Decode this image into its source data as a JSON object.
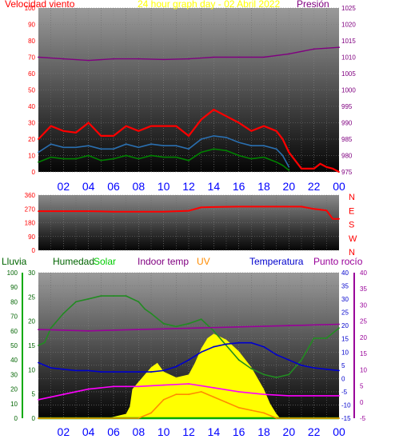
{
  "header": {
    "wind_label": "Velocidad viento",
    "title": "24 hour graph day - 02 Abril 2022",
    "pressure_label": "Presión"
  },
  "legend2": {
    "rain": "Lluvia",
    "humidity": "Humedad",
    "solar": "Solar",
    "indoor": "Indoor temp",
    "uv": "UV",
    "temperature": "Temperatura",
    "dewpoint": "Punto rocío"
  },
  "colors": {
    "wind_gust": "#ff0000",
    "wind_avg": "#2a6fb0",
    "wind_low": "#008000",
    "pressure": "#800080",
    "direction": "#ff0000",
    "humidity": "#228b22",
    "solar": "#ffff00",
    "temperature": "#0000cd",
    "dewpoint": "#990099",
    "indoor": "#ff00ff",
    "uv": "#ff8c00",
    "rain_axis": "#00aa00",
    "x_axis_text": "#0000ff"
  },
  "chart_data": [
    {
      "id": "wind_pressure",
      "type": "line",
      "title": "24 hour graph day - 02 Abril 2022",
      "ylabel": "Velocidad viento",
      "y2label": "Presión",
      "x_ticks": [
        "02",
        "04",
        "06",
        "08",
        "10",
        "12",
        "14",
        "16",
        "18",
        "20",
        "22",
        "00"
      ],
      "ylim": [
        0,
        100
      ],
      "y_ticks": [
        0,
        10,
        20,
        30,
        40,
        50,
        60,
        70,
        80,
        90,
        100
      ],
      "y2lim": [
        975,
        1025
      ],
      "y2_ticks": [
        975,
        980,
        985,
        990,
        995,
        1000,
        1005,
        1010,
        1015,
        1020,
        1025
      ],
      "series": [
        {
          "color": "#ff0000",
          "x": [
            0,
            1,
            2,
            3,
            4,
            5,
            6,
            7,
            8,
            9,
            10,
            11,
            12,
            13,
            14,
            15,
            16,
            17,
            18,
            19,
            19.5,
            20,
            21,
            22,
            22.5,
            23,
            23.5,
            24
          ],
          "values": [
            20,
            28,
            25,
            24,
            30,
            22,
            22,
            28,
            25,
            28,
            28,
            28,
            22,
            32,
            38,
            34,
            30,
            25,
            28,
            25,
            20,
            12,
            2,
            2,
            5,
            3,
            2,
            0
          ]
        },
        {
          "color": "#2a6fb0",
          "x": [
            0,
            1,
            2,
            3,
            4,
            5,
            6,
            7,
            8,
            9,
            10,
            11,
            12,
            13,
            14,
            15,
            16,
            17,
            18,
            19,
            19.5,
            20
          ],
          "values": [
            12,
            17,
            15,
            15,
            16,
            14,
            14,
            17,
            15,
            17,
            16,
            16,
            14,
            20,
            22,
            21,
            18,
            16,
            16,
            14,
            10,
            3
          ]
        },
        {
          "color": "#008000",
          "x": [
            0,
            1,
            2,
            3,
            4,
            5,
            6,
            7,
            8,
            9,
            10,
            11,
            12,
            13,
            14,
            15,
            16,
            17,
            18,
            19,
            19.5,
            20
          ],
          "values": [
            6,
            9,
            8,
            8,
            10,
            7,
            8,
            10,
            8,
            10,
            9,
            9,
            7,
            12,
            14,
            13,
            10,
            8,
            9,
            6,
            4,
            1
          ]
        },
        {
          "color": "#800080",
          "axis": "right",
          "x": [
            0,
            2,
            4,
            6,
            8,
            10,
            12,
            14,
            16,
            18,
            20,
            22,
            24
          ],
          "values": [
            1010,
            1009.5,
            1009,
            1009.5,
            1009.5,
            1009.3,
            1009.5,
            1010,
            1010,
            1010,
            1011,
            1012.5,
            1013
          ]
        }
      ]
    },
    {
      "id": "wind_direction",
      "type": "line",
      "x_ticks": [
        "02",
        "04",
        "06",
        "08",
        "10",
        "12",
        "14",
        "16",
        "18",
        "20",
        "22",
        "00"
      ],
      "ylim": [
        0,
        360
      ],
      "y_ticks": [
        0,
        90,
        180,
        270,
        360
      ],
      "y_tick_labels": [
        "0",
        "90",
        "180",
        "270",
        "360"
      ],
      "right_labels": [
        "N",
        "W",
        "S",
        "E",
        "N"
      ],
      "series": [
        {
          "color": "#ff0000",
          "x": [
            0,
            2,
            4,
            6,
            8,
            10,
            12,
            13,
            14,
            16,
            18,
            20,
            21,
            22,
            23,
            23.5,
            24
          ],
          "values": [
            255,
            255,
            255,
            252,
            252,
            252,
            258,
            280,
            282,
            285,
            285,
            285,
            285,
            270,
            260,
            205,
            205
          ]
        }
      ]
    },
    {
      "id": "temperature_solar",
      "type": "line",
      "x_ticks": [
        "02",
        "04",
        "06",
        "08",
        "10",
        "12",
        "14",
        "16",
        "18",
        "20",
        "22",
        "00"
      ],
      "legend": [
        "Lluvia",
        "Humedad",
        "Solar",
        "Indoor temp",
        "UV",
        "Temperatura",
        "Punto rocío"
      ],
      "humidity_axis": {
        "lim": [
          0,
          100
        ],
        "ticks": [
          0,
          10,
          20,
          30,
          40,
          50,
          60,
          70,
          80,
          90,
          100
        ]
      },
      "rain_axis": {
        "lim": [
          0,
          30
        ],
        "ticks": [
          0,
          5,
          10,
          15,
          20,
          25,
          30
        ]
      },
      "temp_axis": {
        "lim": [
          -15,
          40
        ],
        "ticks": [
          -15,
          -10,
          -5,
          0,
          5,
          10,
          15,
          20,
          25,
          30,
          35,
          40
        ]
      },
      "temp_axis_right": {
        "lim": [
          -5,
          40
        ],
        "ticks": [
          -5,
          0,
          5,
          10,
          15,
          20,
          25,
          30,
          35,
          40
        ]
      },
      "series": [
        {
          "name": "Humedad",
          "color": "#228b22",
          "axis": "humidity",
          "x": [
            0,
            0.5,
            1,
            2,
            3,
            4,
            5,
            6,
            7,
            8,
            8.5,
            9,
            10,
            11,
            12,
            13,
            14,
            15,
            16,
            17,
            18,
            19,
            20,
            21,
            22,
            23,
            24
          ],
          "values": [
            50,
            52,
            62,
            72,
            80,
            82,
            84,
            84,
            84,
            80,
            75,
            72,
            65,
            63,
            65,
            68,
            60,
            50,
            40,
            34,
            30,
            28,
            30,
            40,
            55,
            55,
            62
          ]
        },
        {
          "name": "Solar",
          "color": "#ffff00",
          "axis": "humidity",
          "x": [
            0,
            5.5,
            6,
            7,
            7.3,
            7.5,
            8,
            9,
            9.5,
            10,
            10.5,
            11,
            12,
            12.5,
            13,
            13.5,
            14,
            15,
            16,
            17,
            18,
            18.5,
            19,
            19.3,
            24
          ],
          "values": [
            0,
            0,
            1,
            3,
            8,
            20,
            25,
            35,
            38,
            32,
            30,
            28,
            30,
            38,
            48,
            55,
            58,
            54,
            46,
            35,
            20,
            10,
            3,
            0,
            0
          ]
        },
        {
          "name": "Temperatura",
          "color": "#0000cd",
          "axis": "temp",
          "x": [
            0,
            1,
            2,
            3,
            4,
            5,
            6,
            7,
            8,
            9,
            10,
            11,
            12,
            13,
            14,
            15,
            16,
            17,
            18,
            19,
            20,
            21,
            22,
            23,
            24
          ],
          "values": [
            6,
            4,
            3.5,
            3,
            3,
            2.5,
            2.5,
            2.5,
            2.5,
            2.5,
            3,
            4.5,
            7,
            10,
            12,
            13,
            13.5,
            13.5,
            12,
            9,
            7,
            5,
            4,
            3.5,
            3
          ]
        },
        {
          "name": "Punto rocío",
          "color": "#990099",
          "axis": "temp",
          "x": [
            0,
            4,
            8,
            12,
            16,
            20,
            24
          ],
          "values": [
            18.5,
            18,
            18.5,
            19,
            19.5,
            20,
            20.5
          ]
        },
        {
          "name": "Indoor temp",
          "color": "#ff00ff",
          "axis": "temp",
          "x": [
            0,
            2,
            4,
            6,
            8,
            10,
            12,
            14,
            16,
            18,
            20,
            22,
            24
          ],
          "values": [
            -8,
            -6,
            -4,
            -3,
            -3,
            -2.5,
            -2,
            -3.5,
            -5,
            -6,
            -6.5,
            -6.5,
            -6.5
          ]
        },
        {
          "name": "Lluvia",
          "color": "#00aa00",
          "axis": "humidity",
          "x": [
            0,
            24
          ],
          "values": [
            0,
            0
          ]
        },
        {
          "name": "UV",
          "color": "#ff8c00",
          "axis": "temp",
          "x": [
            0,
            8,
            9,
            10,
            11,
            12,
            13,
            14,
            15,
            16,
            17,
            18,
            19,
            24
          ],
          "values": [
            -15,
            -15,
            -13,
            -8,
            -6,
            -6,
            -5,
            -7,
            -9,
            -11,
            -12,
            -13,
            -15,
            -15
          ]
        }
      ]
    }
  ]
}
